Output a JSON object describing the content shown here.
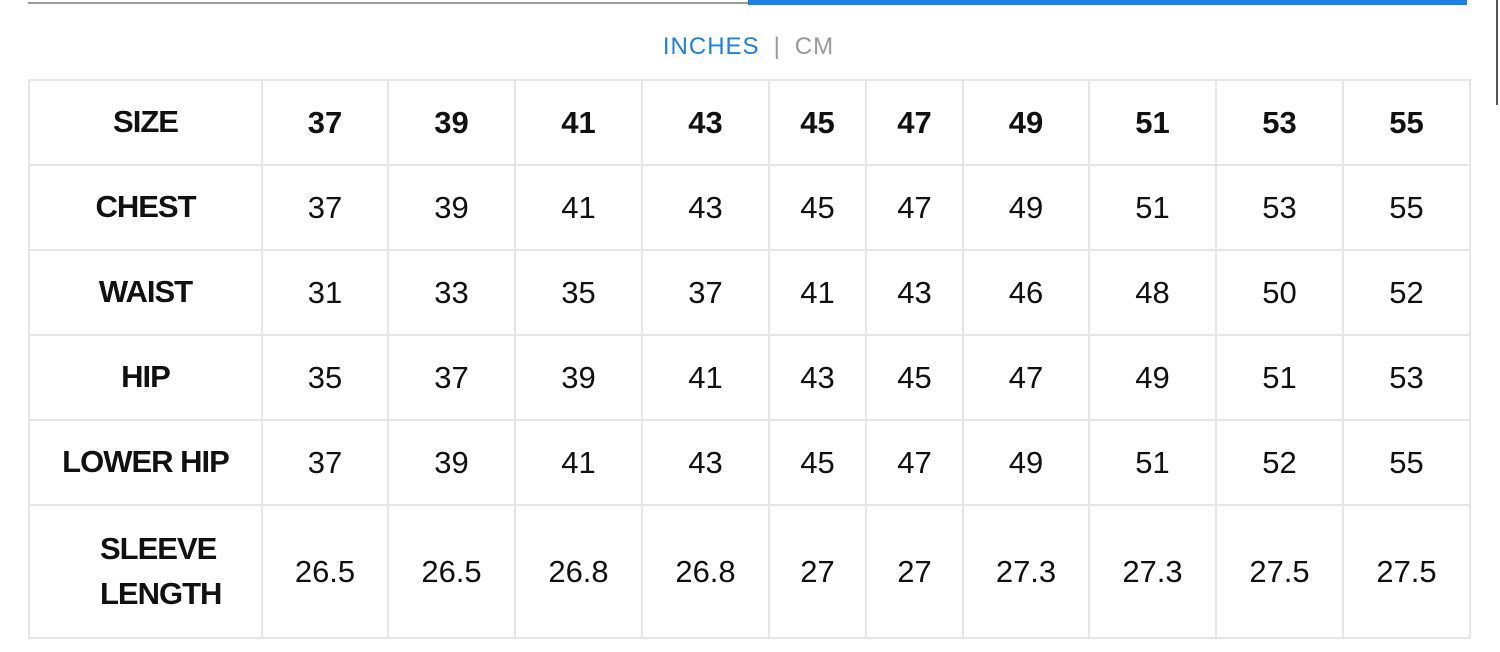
{
  "units": {
    "active": "INCHES",
    "separator": "|",
    "inactive": "CM"
  },
  "colors": {
    "accent": "#1a7fe6",
    "border": "#e6e6e6"
  },
  "table": {
    "rows": [
      {
        "label": "SIZE",
        "values": [
          "37",
          "39",
          "41",
          "43",
          "45",
          "47",
          "49",
          "51",
          "53",
          "55"
        ]
      },
      {
        "label": "CHEST",
        "values": [
          "37",
          "39",
          "41",
          "43",
          "45",
          "47",
          "49",
          "51",
          "53",
          "55"
        ]
      },
      {
        "label": "WAIST",
        "values": [
          "31",
          "33",
          "35",
          "37",
          "41",
          "43",
          "46",
          "48",
          "50",
          "52"
        ]
      },
      {
        "label": "HIP",
        "values": [
          "35",
          "37",
          "39",
          "41",
          "43",
          "45",
          "47",
          "49",
          "51",
          "53"
        ]
      },
      {
        "label": "LOWER HIP",
        "values": [
          "37",
          "39",
          "41",
          "43",
          "45",
          "47",
          "49",
          "51",
          "52",
          "55"
        ]
      },
      {
        "label": "SLEEVE LENGTH",
        "values": [
          "26.5",
          "26.5",
          "26.8",
          "26.8",
          "27",
          "27",
          "27.3",
          "27.3",
          "27.5",
          "27.5"
        ]
      }
    ]
  }
}
